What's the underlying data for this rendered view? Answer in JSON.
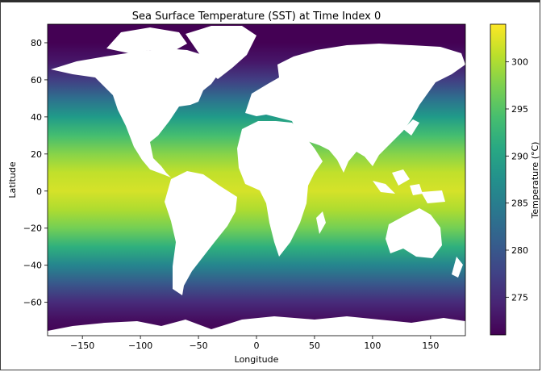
{
  "chart_data": {
    "type": "heatmap",
    "title": "Sea Surface Temperature (SST) at Time Index 0",
    "xlabel": "Longitude",
    "ylabel": "Latitude",
    "xlim": [
      -180,
      180
    ],
    "ylim": [
      -78,
      90
    ],
    "x_ticks": [
      -150,
      -100,
      -50,
      0,
      50,
      100,
      150
    ],
    "x_tick_labels": [
      "−150",
      "−100",
      "−50",
      "0",
      "50",
      "100",
      "150"
    ],
    "y_ticks": [
      80,
      60,
      40,
      20,
      0,
      -20,
      -40,
      -60
    ],
    "y_tick_labels": [
      "80",
      "60",
      "40",
      "20",
      "0",
      "−20",
      "−40",
      "−60"
    ],
    "colorbar": {
      "label": "Temperature (°C)",
      "range": [
        271,
        304
      ],
      "ticks": [
        275,
        280,
        285,
        290,
        295,
        300
      ],
      "tick_labels": [
        "275",
        "280",
        "285",
        "290",
        "295",
        "300"
      ],
      "colormap": "viridis"
    },
    "latitude_profile": {
      "lat": [
        90,
        80,
        70,
        60,
        50,
        40,
        30,
        20,
        10,
        0,
        -10,
        -20,
        -30,
        -40,
        -50,
        -60,
        -70,
        -78
      ],
      "temperature": [
        271,
        271,
        273,
        277,
        283,
        289,
        294,
        298,
        301,
        302,
        300,
        297,
        292,
        286,
        280,
        275,
        272,
        271
      ]
    },
    "grid": false,
    "land_color": "#ffffff"
  }
}
